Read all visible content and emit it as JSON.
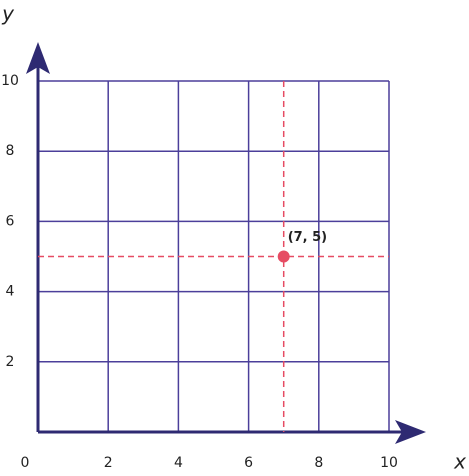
{
  "chart_data": {
    "type": "scatter",
    "x_label": "x",
    "y_label": "y",
    "x": [
      7
    ],
    "y": [
      5
    ],
    "annotation": "(7, 5)",
    "color": "#e64c63",
    "guide_lines": true,
    "xlim": [
      0,
      10
    ],
    "ylim": [
      0,
      10
    ],
    "xticks": [
      0,
      2,
      4,
      6,
      8,
      10
    ],
    "yticks": [
      2,
      4,
      6,
      8,
      10
    ],
    "grid": true,
    "grid_color": "#4b3f9a",
    "axis_color": "#2e2a72"
  }
}
